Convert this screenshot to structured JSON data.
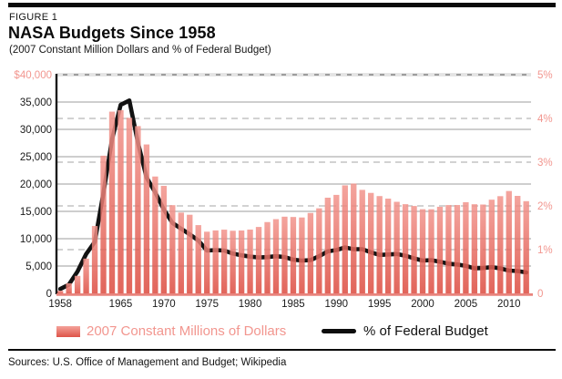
{
  "figure_label": "FIGURE 1",
  "title": "NASA Budgets Since 1958",
  "subtitle": "(2007 Constant Million Dollars and % of Federal Budget)",
  "source_line": "Sources: U.S. Office of Management and Budget; Wikipedia",
  "legend": {
    "bars_label": "2007 Constant Millions of Dollars",
    "line_label": "% of Federal Budget"
  },
  "colors": {
    "pink_label": "#F2968F",
    "bar_gradient_top": "#F2958D",
    "bar_gradient_bottom": "#DC4A3E",
    "baseline_pink": "#E8837C",
    "percent_line": "#121212",
    "solid_grid": "#9C9C9C",
    "dashed_grid": "#CBCBCB",
    "axis_black": "#1A1A1A",
    "tick_black": "#1A1A1A"
  },
  "chart_data": {
    "type": "bar",
    "title": "NASA Budgets Since 1958",
    "subtitle": "(2007 Constant Million Dollars and % of Federal Budget)",
    "x": [
      1958,
      1959,
      1960,
      1961,
      1962,
      1963,
      1964,
      1965,
      1966,
      1967,
      1968,
      1969,
      1970,
      1971,
      1972,
      1973,
      1974,
      1975,
      1976,
      1977,
      1978,
      1979,
      1980,
      1981,
      1982,
      1983,
      1984,
      1985,
      1986,
      1987,
      1988,
      1989,
      1990,
      1991,
      1992,
      1993,
      1994,
      1995,
      1996,
      1997,
      1998,
      1999,
      2000,
      2001,
      2002,
      2003,
      2004,
      2005,
      2006,
      2007,
      2008,
      2009,
      2010,
      2011,
      2012
    ],
    "series": [
      {
        "name": "2007 Constant Millions of Dollars",
        "type": "bar",
        "axis": "left",
        "values": [
          488,
          1841,
          3205,
          6360,
          12321,
          25182,
          33241,
          33514,
          32106,
          30600,
          27240,
          21376,
          19663,
          16139,
          14775,
          14384,
          12487,
          11281,
          11514,
          11657,
          11455,
          11504,
          11669,
          12150,
          13044,
          13576,
          14026,
          13972,
          13884,
          14710,
          15556,
          17501,
          18016,
          19756,
          20089,
          18932,
          18378,
          17796,
          17331,
          16749,
          16313,
          15986,
          15395,
          15385,
          15839,
          16152,
          16162,
          16678,
          16303,
          16252,
          17138,
          17782,
          18724,
          17833,
          16865
        ]
      },
      {
        "name": "% of Federal Budget",
        "type": "line",
        "axis": "right",
        "values": [
          0.1,
          0.2,
          0.5,
          0.9,
          1.18,
          2.29,
          3.52,
          4.31,
          4.41,
          3.45,
          2.65,
          2.31,
          1.92,
          1.61,
          1.48,
          1.35,
          1.21,
          0.98,
          0.99,
          0.98,
          0.91,
          0.87,
          0.84,
          0.82,
          0.83,
          0.85,
          0.83,
          0.77,
          0.75,
          0.76,
          0.85,
          0.96,
          0.99,
          1.05,
          1.01,
          1.01,
          0.94,
          0.88,
          0.89,
          0.9,
          0.86,
          0.8,
          0.75,
          0.76,
          0.72,
          0.68,
          0.66,
          0.63,
          0.57,
          0.58,
          0.6,
          0.57,
          0.52,
          0.51,
          0.48
        ]
      }
    ],
    "left_axis": {
      "range": [
        0,
        40000
      ],
      "tick_step": 5000,
      "tick_labels": [
        "0",
        "5,000",
        "10,000",
        "15,000",
        "20,000",
        "25,000",
        "30,000",
        "35,000",
        "$40,000"
      ]
    },
    "right_axis": {
      "range": [
        0,
        5
      ],
      "tick_step": 1,
      "tick_labels": [
        "0",
        "1%",
        "2%",
        "3%",
        "4%",
        "5%"
      ]
    },
    "x_tick_labels": [
      "1958",
      "1965",
      "1970",
      "1975",
      "1980",
      "1985",
      "1990",
      "1995",
      "2000",
      "2005",
      "2010"
    ],
    "grid": {
      "solid_lines": "dollar ticks every 5,000",
      "dashed_lines": "percent ticks every 1%",
      "legend_position": "bottom"
    }
  }
}
